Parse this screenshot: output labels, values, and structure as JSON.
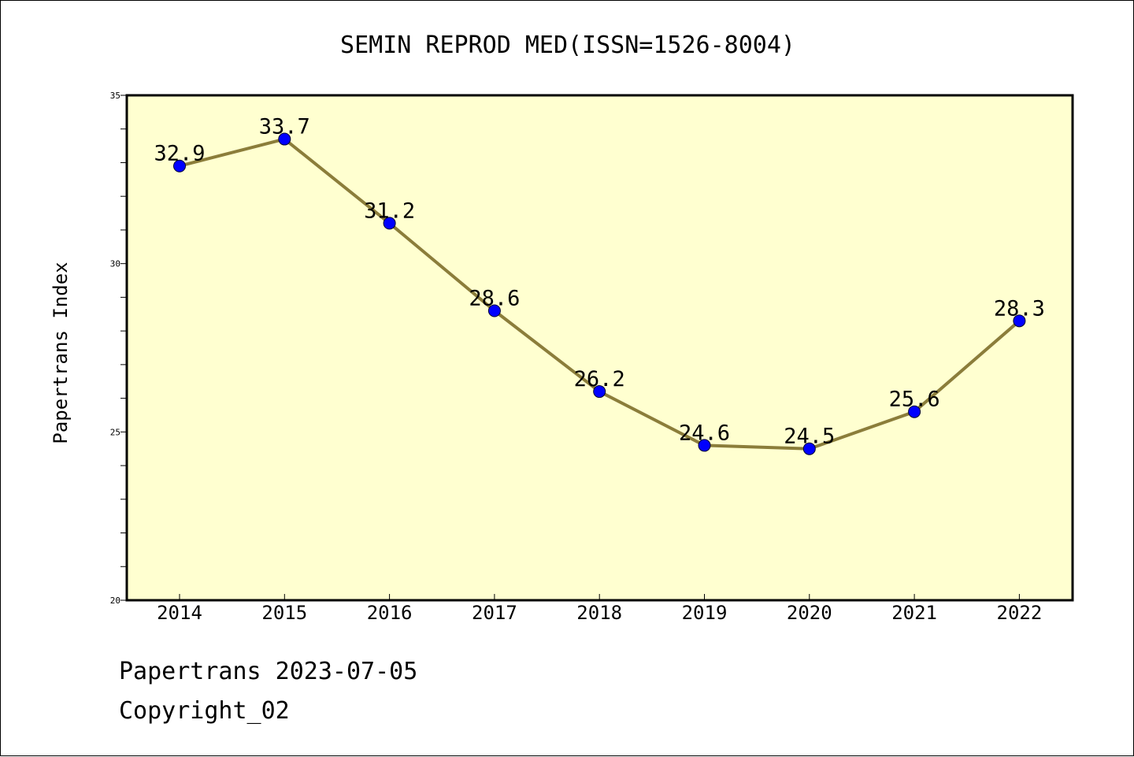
{
  "chart_data": {
    "type": "line",
    "title": "SEMIN REPROD MED(ISSN=1526-8004)",
    "xlabel": "",
    "ylabel": "Papertrans Index",
    "categories": [
      "2014",
      "2015",
      "2016",
      "2017",
      "2018",
      "2019",
      "2020",
      "2021",
      "2022"
    ],
    "series": [
      {
        "values": [
          32.9,
          33.7,
          31.2,
          28.6,
          26.2,
          24.6,
          24.5,
          25.6,
          28.3
        ],
        "labels": [
          "32.9",
          "33.7",
          "31.2",
          "28.6",
          "26.2",
          "24.6",
          "24.5",
          "25.6",
          "28.3"
        ],
        "line_color": "#8b7d3a",
        "marker_color": "#0000ff"
      }
    ],
    "ylim": [
      20,
      35
    ],
    "yticks": [
      "20",
      "25",
      "30",
      "35"
    ],
    "grid": false,
    "plot_background": "#ffffd0"
  },
  "footer": {
    "line1": "Papertrans 2023-07-05",
    "line2": "Copyright_02"
  }
}
